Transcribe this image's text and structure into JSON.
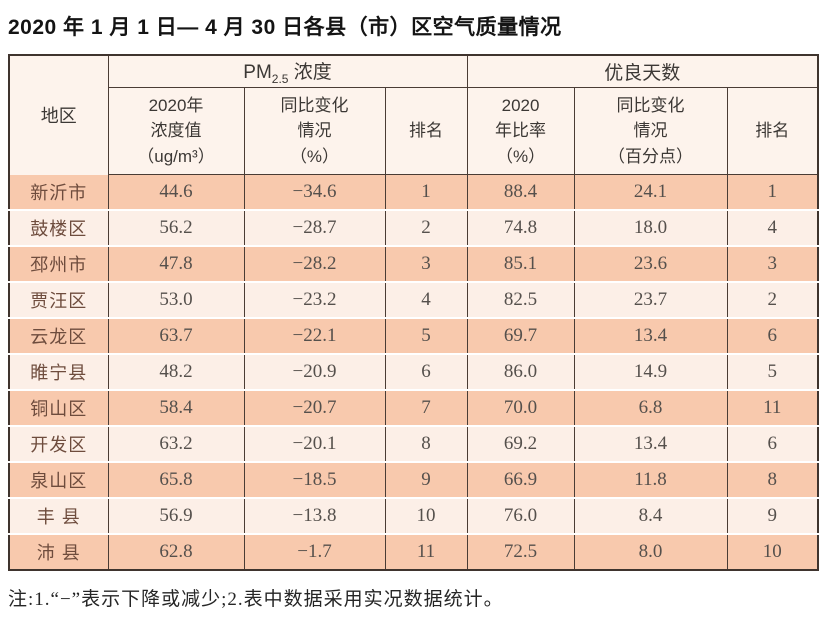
{
  "page": {
    "title": "2020 年 1 月 1 日— 4 月 30 日各县（市）区空气质量情况",
    "note": "注:1.“−”表示下降或减少;2.表中数据采用实况数据统计。"
  },
  "table": {
    "region_header": "地区",
    "pm_group": {
      "prefix": "PM",
      "sub": "2.5",
      "rest": " 浓度"
    },
    "good_group_label": "优良天数",
    "subheaders": [
      "2020年\n浓度值\n（ug/m³）",
      "同比变化\n情况\n（%）",
      "排名",
      "2020\n年比率\n（%）",
      "同比变化\n情况\n（百分点）",
      "排名"
    ],
    "rows": [
      {
        "region": "新沂市",
        "values": [
          "44.6",
          "−34.6",
          "1",
          "88.4",
          "24.1",
          "1"
        ]
      },
      {
        "region": "鼓楼区",
        "values": [
          "56.2",
          "−28.7",
          "2",
          "74.8",
          "18.0",
          "4"
        ]
      },
      {
        "region": "邳州市",
        "values": [
          "47.8",
          "−28.2",
          "3",
          "85.1",
          "23.6",
          "3"
        ]
      },
      {
        "region": "贾汪区",
        "values": [
          "53.0",
          "−23.2",
          "4",
          "82.5",
          "23.7",
          "2"
        ]
      },
      {
        "region": "云龙区",
        "values": [
          "63.7",
          "−22.1",
          "5",
          "69.7",
          "13.4",
          "6"
        ]
      },
      {
        "region": "睢宁县",
        "values": [
          "48.2",
          "−20.9",
          "6",
          "86.0",
          "14.9",
          "5"
        ]
      },
      {
        "region": "铜山区",
        "values": [
          "58.4",
          "−20.7",
          "7",
          "70.0",
          "6.8",
          "11"
        ]
      },
      {
        "region": "开发区",
        "values": [
          "63.2",
          "−20.1",
          "8",
          "69.2",
          "13.4",
          "6"
        ]
      },
      {
        "region": "泉山区",
        "values": [
          "65.8",
          "−18.5",
          "9",
          "66.9",
          "11.8",
          "8"
        ]
      },
      {
        "region": "丰 县",
        "values": [
          "56.9",
          "−13.8",
          "10",
          "76.0",
          "8.4",
          "9"
        ]
      },
      {
        "region": "沛 县",
        "values": [
          "62.8",
          "−1.7",
          "11",
          "72.5",
          "8.0",
          "10"
        ]
      }
    ]
  },
  "colors": {
    "row_odd_bg": "#f8c9ad",
    "row_even_bg": "#fcefe7",
    "header_bg": "#fdf3ec",
    "border": "#4a3c35",
    "region_text": "#6e4c3d",
    "number_text": "#55504c"
  }
}
